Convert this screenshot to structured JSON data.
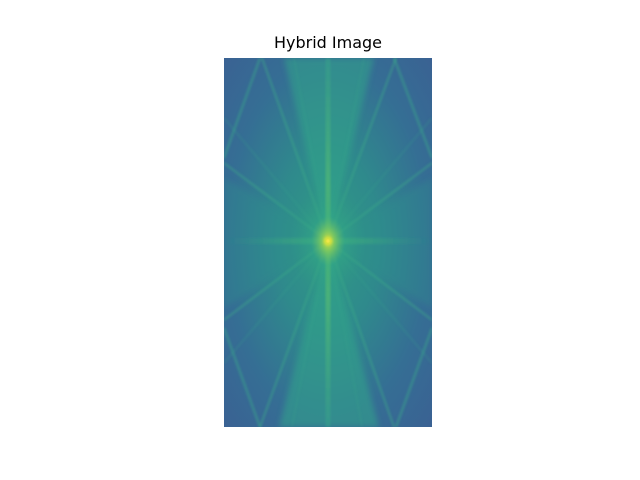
{
  "figure": {
    "title": "Hybrid Image"
  },
  "image": {
    "icon": "fft-spectrum-image",
    "colormap": "viridis",
    "colors": {
      "background": "#3a6a94",
      "mid": "#2f8c8a",
      "bright": "#42b27c",
      "peak": "#c9df43",
      "figure_bg": "#ffffff"
    }
  }
}
